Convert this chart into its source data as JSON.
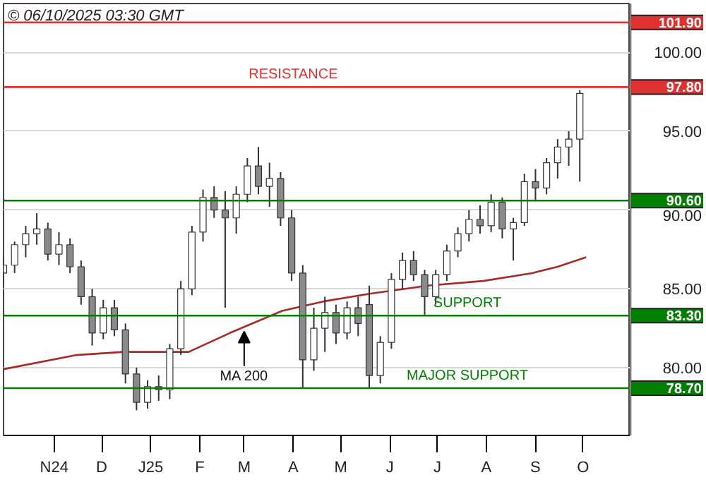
{
  "chart_data": {
    "type": "candlestick",
    "title": "© 06/10/2025 03:30 GMT",
    "x": [
      "2024-09-30",
      "2024-10-07",
      "2024-10-14",
      "2024-10-21",
      "2024-10-28",
      "2024-11-04",
      "2024-11-11",
      "2024-11-18",
      "2024-11-25",
      "2024-12-02",
      "2024-12-09",
      "2024-12-16",
      "2024-12-23",
      "2024-12-30",
      "2025-01-06",
      "2025-01-13",
      "2025-01-20",
      "2025-01-27",
      "2025-02-03",
      "2025-02-10",
      "2025-02-17",
      "2025-02-24",
      "2025-03-03",
      "2025-03-10",
      "2025-03-17",
      "2025-03-24",
      "2025-03-31",
      "2025-04-07",
      "2025-04-14",
      "2025-04-21",
      "2025-04-28",
      "2025-05-05",
      "2025-05-12",
      "2025-05-19",
      "2025-05-26",
      "2025-06-02",
      "2025-06-09",
      "2025-06-16",
      "2025-06-23",
      "2025-06-30",
      "2025-07-07",
      "2025-07-14",
      "2025-07-21",
      "2025-07-28",
      "2025-08-04",
      "2025-08-11",
      "2025-08-18",
      "2025-08-25",
      "2025-09-01",
      "2025-09-08",
      "2025-09-15",
      "2025-09-22",
      "2025-09-29"
    ],
    "ohlc": [
      [
        86.0,
        87.0,
        85.2,
        86.5
      ],
      [
        86.5,
        88.0,
        86.0,
        87.8
      ],
      [
        87.8,
        89.0,
        87.0,
        88.5
      ],
      [
        88.5,
        89.8,
        87.8,
        88.8
      ],
      [
        88.8,
        89.2,
        86.8,
        87.2
      ],
      [
        87.2,
        88.6,
        86.5,
        87.8
      ],
      [
        87.8,
        88.2,
        86.0,
        86.4
      ],
      [
        86.4,
        86.8,
        84.0,
        84.5
      ],
      [
        84.5,
        85.0,
        81.4,
        82.2
      ],
      [
        82.2,
        84.3,
        81.8,
        83.8
      ],
      [
        83.8,
        84.3,
        82.0,
        82.4
      ],
      [
        82.4,
        82.8,
        79.0,
        79.6
      ],
      [
        79.6,
        80.0,
        77.3,
        77.8
      ],
      [
        77.8,
        79.2,
        77.4,
        78.8
      ],
      [
        78.8,
        79.5,
        77.9,
        78.6
      ],
      [
        78.6,
        81.5,
        78.0,
        81.2
      ],
      [
        81.2,
        85.5,
        80.8,
        85.0
      ],
      [
        85.0,
        89.0,
        84.6,
        88.6
      ],
      [
        88.6,
        91.3,
        88.0,
        90.8
      ],
      [
        90.8,
        91.5,
        89.5,
        90.0
      ],
      [
        90.0,
        91.2,
        83.8,
        89.5
      ],
      [
        89.5,
        91.5,
        88.5,
        91.0
      ],
      [
        91.0,
        93.3,
        90.5,
        92.8
      ],
      [
        92.8,
        94.0,
        91.0,
        91.5
      ],
      [
        91.5,
        93.0,
        90.2,
        92.0
      ],
      [
        92.0,
        92.4,
        89.0,
        89.5
      ],
      [
        89.5,
        90.0,
        85.5,
        86.0
      ],
      [
        86.0,
        86.5,
        78.7,
        80.5
      ],
      [
        80.5,
        83.8,
        79.8,
        82.5
      ],
      [
        82.5,
        84.5,
        81.0,
        83.5
      ],
      [
        83.5,
        84.0,
        81.5,
        82.2
      ],
      [
        82.2,
        84.2,
        81.8,
        83.8
      ],
      [
        83.8,
        84.5,
        82.0,
        82.8
      ],
      [
        84.0,
        85.2,
        78.7,
        79.5
      ],
      [
        79.5,
        82.0,
        79.0,
        81.6
      ],
      [
        81.6,
        86.0,
        81.2,
        85.6
      ],
      [
        85.6,
        87.3,
        85.0,
        86.8
      ],
      [
        86.8,
        87.4,
        85.5,
        85.9
      ],
      [
        85.9,
        86.2,
        83.3,
        84.5
      ],
      [
        84.5,
        86.2,
        84.0,
        85.9
      ],
      [
        85.9,
        87.8,
        85.5,
        87.4
      ],
      [
        87.4,
        88.9,
        87.0,
        88.5
      ],
      [
        88.5,
        90.0,
        88.0,
        89.4
      ],
      [
        89.4,
        90.3,
        88.5,
        89.0
      ],
      [
        89.0,
        91.0,
        88.6,
        90.5
      ],
      [
        90.5,
        90.8,
        88.2,
        88.8
      ],
      [
        88.8,
        89.5,
        86.8,
        89.2
      ],
      [
        89.2,
        92.3,
        89.0,
        91.8
      ],
      [
        91.8,
        92.6,
        90.6,
        91.4
      ],
      [
        91.4,
        93.3,
        91.0,
        93.0
      ],
      [
        93.0,
        94.5,
        92.0,
        94.0
      ],
      [
        94.0,
        95.0,
        92.8,
        94.5
      ],
      [
        94.5,
        97.6,
        91.8,
        97.4
      ]
    ],
    "series": [
      {
        "type": "line",
        "color": "#a52a2a",
        "x": [
          "2024-09-30",
          "2024-11-15",
          "2024-12-15",
          "2025-01-25",
          "2025-02-20",
          "2025-03-25",
          "2025-04-20",
          "2025-05-20",
          "2025-06-25",
          "2025-07-30",
          "2025-08-30",
          "2025-09-15",
          "2025-10-03"
        ],
        "values": [
          79.9,
          80.8,
          81.0,
          81.0,
          82.2,
          83.6,
          84.2,
          84.7,
          85.2,
          85.5,
          86.0,
          86.4,
          87.0
        ]
      }
    ],
    "xlim": [
      "2024-09-30",
      "2025-10-31"
    ],
    "xticks": [
      {
        "value": "2024-11-01",
        "label": "N24"
      },
      {
        "value": "2024-12-01",
        "label": "D"
      },
      {
        "value": "2025-01-01",
        "label": "J25"
      },
      {
        "value": "2025-02-01",
        "label": "F"
      },
      {
        "value": "2025-03-01",
        "label": "M"
      },
      {
        "value": "2025-04-01",
        "label": "A"
      },
      {
        "value": "2025-05-01",
        "label": "M"
      },
      {
        "value": "2025-06-01",
        "label": "J"
      },
      {
        "value": "2025-07-01",
        "label": "J"
      },
      {
        "value": "2025-08-01",
        "label": "A"
      },
      {
        "value": "2025-09-01",
        "label": "S"
      },
      {
        "value": "2025-10-01",
        "label": "O"
      }
    ],
    "ylim": [
      75.7,
      103.1
    ],
    "yticks": [
      {
        "value": 80,
        "label": "80.00"
      },
      {
        "value": 85,
        "label": "85.00"
      },
      {
        "value": 90,
        "label": "90.00"
      },
      {
        "value": 95,
        "label": "95.00"
      },
      {
        "value": 100,
        "label": "100.00"
      }
    ],
    "grid": "y",
    "ref_lines": [
      {
        "axis": "y",
        "value": 101.9,
        "label": "101.90",
        "color": "#e03030"
      },
      {
        "axis": "y",
        "value": 97.8,
        "label": "97.80",
        "color": "#e03030"
      },
      {
        "axis": "y",
        "value": 90.6,
        "label": "90.60",
        "color": "#008000"
      },
      {
        "axis": "y",
        "value": 83.3,
        "label": "83.30",
        "color": "#008000"
      },
      {
        "axis": "y",
        "value": 78.7,
        "label": "78.70",
        "color": "#008000"
      }
    ],
    "annotations": [
      {
        "text": "RESISTANCE",
        "x": "2025-04-01",
        "y": 97.8
      },
      {
        "text": "SUPPORT",
        "x": "2025-07-20",
        "y": 83.3
      },
      {
        "text": "MAJOR SUPPORT",
        "x": "2025-07-20",
        "y": 78.7
      },
      {
        "text": "MA 200",
        "x": "2025-03-01",
        "y": 82.3
      }
    ]
  }
}
